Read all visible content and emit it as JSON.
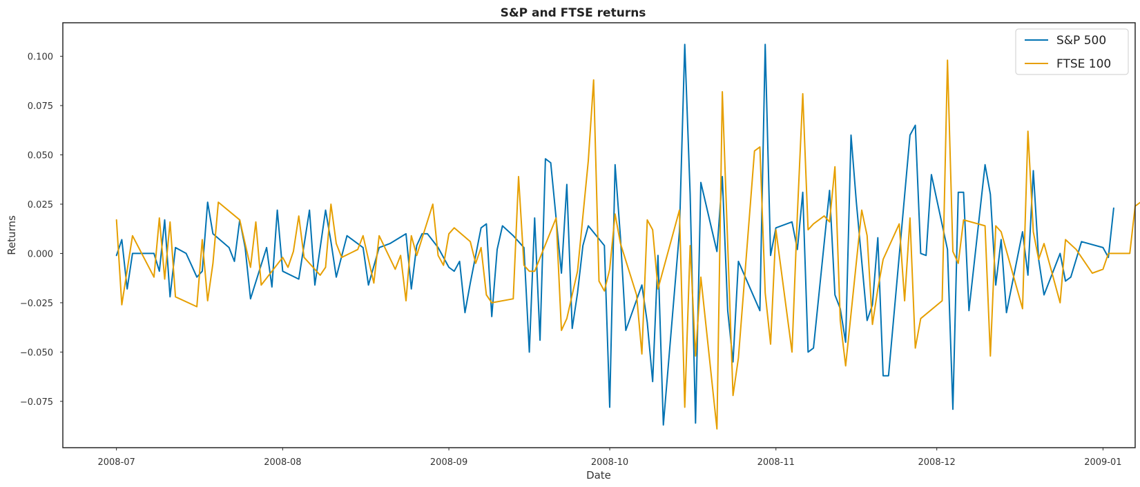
{
  "chart_data": {
    "type": "line",
    "title": "S&P and FTSE returns",
    "xlabel": "Date",
    "ylabel": "Returns",
    "xlim": [
      "2008-06-21",
      "2009-01-07"
    ],
    "ylim": [
      -0.0985,
      0.117
    ],
    "x_ticks": [
      {
        "date": "2008-07-01",
        "label": "2008-07"
      },
      {
        "date": "2008-08-01",
        "label": "2008-08"
      },
      {
        "date": "2008-09-01",
        "label": "2008-09"
      },
      {
        "date": "2008-10-01",
        "label": "2008-10"
      },
      {
        "date": "2008-11-01",
        "label": "2008-11"
      },
      {
        "date": "2008-12-01",
        "label": "2008-12"
      },
      {
        "date": "2009-01-01",
        "label": "2009-01"
      }
    ],
    "y_ticks": [
      -0.075,
      -0.05,
      -0.025,
      0.0,
      0.025,
      0.05,
      0.075,
      0.1
    ],
    "y_tick_labels": [
      "−0.075",
      "−0.050",
      "−0.025",
      "0.000",
      "0.025",
      "0.050",
      "0.075",
      "0.100"
    ],
    "grid": false,
    "legend": {
      "position": "top-right"
    },
    "series": [
      {
        "name": "S&P 500",
        "color": "#0072b2",
        "points": [
          [
            "2008-07-01",
            -0.001
          ],
          [
            "2008-07-02",
            0.007
          ],
          [
            "2008-07-03",
            -0.018
          ],
          [
            "2008-07-04",
            0.0
          ],
          [
            "2008-07-07",
            0.0
          ],
          [
            "2008-07-08",
            0.0
          ],
          [
            "2008-07-09",
            -0.009
          ],
          [
            "2008-07-10",
            0.017
          ],
          [
            "2008-07-11",
            -0.022
          ],
          [
            "2008-07-12",
            0.003
          ],
          [
            "2008-07-14",
            0.0
          ],
          [
            "2008-07-15",
            -0.006
          ],
          [
            "2008-07-16",
            -0.012
          ],
          [
            "2008-07-17",
            -0.009
          ],
          [
            "2008-07-18",
            0.026
          ],
          [
            "2008-07-19",
            0.01
          ],
          [
            "2008-07-22",
            0.003
          ],
          [
            "2008-07-23",
            -0.004
          ],
          [
            "2008-07-24",
            0.017
          ],
          [
            "2008-07-25",
            0.003
          ],
          [
            "2008-07-26",
            -0.023
          ],
          [
            "2008-07-29",
            0.003
          ],
          [
            "2008-07-30",
            -0.017
          ],
          [
            "2008-07-31",
            0.022
          ],
          [
            "2008-08-01",
            -0.009
          ],
          [
            "2008-08-04",
            -0.013
          ],
          [
            "2008-08-06",
            0.022
          ],
          [
            "2008-08-07",
            -0.016
          ],
          [
            "2008-08-09",
            0.022
          ],
          [
            "2008-08-10",
            0.006
          ],
          [
            "2008-08-11",
            -0.012
          ],
          [
            "2008-08-13",
            0.009
          ],
          [
            "2008-08-16",
            0.003
          ],
          [
            "2008-08-17",
            -0.016
          ],
          [
            "2008-08-19",
            0.003
          ],
          [
            "2008-08-21",
            0.005
          ],
          [
            "2008-08-24",
            0.01
          ],
          [
            "2008-08-25",
            -0.018
          ],
          [
            "2008-08-26",
            0.004
          ],
          [
            "2008-08-27",
            0.01
          ],
          [
            "2008-08-28",
            0.01
          ],
          [
            "2008-08-30",
            0.003
          ],
          [
            "2008-09-01",
            -0.007
          ],
          [
            "2008-09-02",
            -0.009
          ],
          [
            "2008-09-03",
            -0.004
          ],
          [
            "2008-09-04",
            -0.03
          ],
          [
            "2008-09-05",
            -0.015
          ],
          [
            "2008-09-07",
            0.013
          ],
          [
            "2008-09-08",
            0.015
          ],
          [
            "2008-09-09",
            -0.032
          ],
          [
            "2008-09-10",
            0.002
          ],
          [
            "2008-09-11",
            0.014
          ],
          [
            "2008-09-13",
            0.009
          ],
          [
            "2008-09-15",
            0.003
          ],
          [
            "2008-09-16",
            -0.05
          ],
          [
            "2008-09-17",
            0.018
          ],
          [
            "2008-09-18",
            -0.044
          ],
          [
            "2008-09-19",
            0.048
          ],
          [
            "2008-09-20",
            0.046
          ],
          [
            "2008-09-22",
            -0.01
          ],
          [
            "2008-09-23",
            0.035
          ],
          [
            "2008-09-24",
            -0.038
          ],
          [
            "2008-09-25",
            -0.02
          ],
          [
            "2008-09-26",
            0.004
          ],
          [
            "2008-09-27",
            0.014
          ],
          [
            "2008-09-30",
            0.004
          ],
          [
            "2008-10-01",
            -0.078
          ],
          [
            "2008-10-02",
            0.045
          ],
          [
            "2008-10-03",
            0.008
          ],
          [
            "2008-10-04",
            -0.039
          ],
          [
            "2008-10-07",
            -0.016
          ],
          [
            "2008-10-08",
            -0.035
          ],
          [
            "2008-10-09",
            -0.065
          ],
          [
            "2008-10-10",
            -0.001
          ],
          [
            "2008-10-11",
            -0.087
          ],
          [
            "2008-10-14",
            0.011
          ],
          [
            "2008-10-15",
            0.106
          ],
          [
            "2008-10-16",
            0.03
          ],
          [
            "2008-10-17",
            -0.086
          ],
          [
            "2008-10-18",
            0.036
          ],
          [
            "2008-10-21",
            0.001
          ],
          [
            "2008-10-22",
            0.039
          ],
          [
            "2008-10-23",
            -0.029
          ],
          [
            "2008-10-24",
            -0.055
          ],
          [
            "2008-10-25",
            -0.004
          ],
          [
            "2008-10-29",
            -0.029
          ],
          [
            "2008-10-30",
            0.106
          ],
          [
            "2008-10-31",
            -0.001
          ],
          [
            "2008-11-01",
            0.013
          ],
          [
            "2008-11-04",
            0.016
          ],
          [
            "2008-11-05",
            0.002
          ],
          [
            "2008-11-06",
            0.031
          ],
          [
            "2008-11-07",
            -0.05
          ],
          [
            "2008-11-08",
            -0.048
          ],
          [
            "2008-11-11",
            0.032
          ],
          [
            "2008-11-12",
            -0.021
          ],
          [
            "2008-11-13",
            -0.028
          ],
          [
            "2008-11-14",
            -0.045
          ],
          [
            "2008-11-15",
            0.06
          ],
          [
            "2008-11-16",
            0.026
          ],
          [
            "2008-11-18",
            -0.034
          ],
          [
            "2008-11-19",
            -0.026
          ],
          [
            "2008-11-20",
            0.008
          ],
          [
            "2008-11-21",
            -0.062
          ],
          [
            "2008-11-22",
            -0.062
          ],
          [
            "2008-11-26",
            0.06
          ],
          [
            "2008-11-27",
            0.065
          ],
          [
            "2008-11-28",
            0.0
          ],
          [
            "2008-11-29",
            -0.001
          ],
          [
            "2008-11-30",
            0.04
          ],
          [
            "2008-12-03",
            0.002
          ],
          [
            "2008-12-04",
            -0.079
          ],
          [
            "2008-12-05",
            0.031
          ],
          [
            "2008-12-06",
            0.031
          ],
          [
            "2008-12-07",
            -0.029
          ],
          [
            "2008-12-10",
            0.045
          ],
          [
            "2008-12-11",
            0.03
          ],
          [
            "2008-12-12",
            -0.016
          ],
          [
            "2008-12-13",
            0.007
          ],
          [
            "2008-12-14",
            -0.03
          ],
          [
            "2008-12-17",
            0.011
          ],
          [
            "2008-12-18",
            -0.011
          ],
          [
            "2008-12-19",
            0.042
          ],
          [
            "2008-12-20",
            -0.003
          ],
          [
            "2008-12-21",
            -0.021
          ],
          [
            "2008-12-24",
            0.0
          ],
          [
            "2008-12-25",
            -0.014
          ],
          [
            "2008-12-26",
            -0.012
          ],
          [
            "2008-12-28",
            0.006
          ],
          [
            "2009-01-01",
            0.003
          ],
          [
            "2009-01-02",
            -0.002
          ],
          [
            "2009-01-03",
            0.023
          ]
        ]
      },
      {
        "name": "FTSE 100",
        "color": "#e69f00",
        "points": [
          [
            "2008-07-01",
            0.017
          ],
          [
            "2008-07-02",
            -0.026
          ],
          [
            "2008-07-04",
            0.009
          ],
          [
            "2008-07-08",
            -0.012
          ],
          [
            "2008-07-09",
            0.018
          ],
          [
            "2008-07-10",
            -0.013
          ],
          [
            "2008-07-11",
            0.016
          ],
          [
            "2008-07-12",
            -0.022
          ],
          [
            "2008-07-16",
            -0.027
          ],
          [
            "2008-07-17",
            0.007
          ],
          [
            "2008-07-18",
            -0.024
          ],
          [
            "2008-07-19",
            -0.005
          ],
          [
            "2008-07-20",
            0.026
          ],
          [
            "2008-07-24",
            0.017
          ],
          [
            "2008-07-26",
            -0.007
          ],
          [
            "2008-07-27",
            0.016
          ],
          [
            "2008-07-28",
            -0.016
          ],
          [
            "2008-08-01",
            -0.002
          ],
          [
            "2008-08-02",
            -0.007
          ],
          [
            "2008-08-03",
            0.001
          ],
          [
            "2008-08-04",
            0.019
          ],
          [
            "2008-08-05",
            -0.002
          ],
          [
            "2008-08-08",
            -0.011
          ],
          [
            "2008-08-09",
            -0.007
          ],
          [
            "2008-08-10",
            0.025
          ],
          [
            "2008-08-11",
            0.005
          ],
          [
            "2008-08-12",
            -0.002
          ],
          [
            "2008-08-15",
            0.002
          ],
          [
            "2008-08-16",
            0.009
          ],
          [
            "2008-08-18",
            -0.015
          ],
          [
            "2008-08-19",
            0.009
          ],
          [
            "2008-08-22",
            -0.008
          ],
          [
            "2008-08-23",
            -0.001
          ],
          [
            "2008-08-24",
            -0.024
          ],
          [
            "2008-08-25",
            0.009
          ],
          [
            "2008-08-26",
            -0.001
          ],
          [
            "2008-08-29",
            0.025
          ],
          [
            "2008-08-30",
            -0.001
          ],
          [
            "2008-08-31",
            -0.006
          ],
          [
            "2008-09-01",
            0.01
          ],
          [
            "2008-09-02",
            0.013
          ],
          [
            "2008-09-05",
            0.006
          ],
          [
            "2008-09-06",
            -0.005
          ],
          [
            "2008-09-07",
            0.003
          ],
          [
            "2008-09-08",
            -0.021
          ],
          [
            "2008-09-09",
            -0.025
          ],
          [
            "2008-09-13",
            -0.023
          ],
          [
            "2008-09-14",
            0.039
          ],
          [
            "2008-09-15",
            -0.006
          ],
          [
            "2008-09-16",
            -0.009
          ],
          [
            "2008-09-17",
            -0.009
          ],
          [
            "2008-09-21",
            0.018
          ],
          [
            "2008-09-22",
            -0.039
          ],
          [
            "2008-09-23",
            -0.033
          ],
          [
            "2008-09-25",
            -0.009
          ],
          [
            "2008-09-27",
            0.047
          ],
          [
            "2008-09-28",
            0.088
          ],
          [
            "2008-09-29",
            -0.014
          ],
          [
            "2008-09-30",
            -0.019
          ],
          [
            "2008-10-01",
            -0.008
          ],
          [
            "2008-10-02",
            0.02
          ],
          [
            "2008-10-03",
            0.005
          ],
          [
            "2008-10-06",
            -0.021
          ],
          [
            "2008-10-07",
            -0.051
          ],
          [
            "2008-10-08",
            0.017
          ],
          [
            "2008-10-09",
            0.012
          ],
          [
            "2008-10-10",
            -0.018
          ],
          [
            "2008-10-14",
            0.022
          ],
          [
            "2008-10-15",
            -0.078
          ],
          [
            "2008-10-16",
            0.004
          ],
          [
            "2008-10-17",
            -0.052
          ],
          [
            "2008-10-18",
            -0.012
          ],
          [
            "2008-10-21",
            -0.089
          ],
          [
            "2008-10-22",
            0.082
          ],
          [
            "2008-10-24",
            -0.072
          ],
          [
            "2008-10-25",
            -0.053
          ],
          [
            "2008-10-28",
            0.052
          ],
          [
            "2008-10-29",
            0.054
          ],
          [
            "2008-10-30",
            -0.02
          ],
          [
            "2008-10-31",
            -0.046
          ],
          [
            "2008-11-01",
            0.012
          ],
          [
            "2008-11-04",
            -0.05
          ],
          [
            "2008-11-05",
            0.02
          ],
          [
            "2008-11-06",
            0.081
          ],
          [
            "2008-11-07",
            0.012
          ],
          [
            "2008-11-08",
            0.015
          ],
          [
            "2008-11-10",
            0.019
          ],
          [
            "2008-11-11",
            0.016
          ],
          [
            "2008-11-12",
            0.044
          ],
          [
            "2008-11-13",
            -0.034
          ],
          [
            "2008-11-14",
            -0.057
          ],
          [
            "2008-11-17",
            0.022
          ],
          [
            "2008-11-18",
            0.009
          ],
          [
            "2008-11-19",
            -0.036
          ],
          [
            "2008-11-20",
            -0.018
          ],
          [
            "2008-11-21",
            -0.003
          ],
          [
            "2008-11-24",
            0.015
          ],
          [
            "2008-11-25",
            -0.024
          ],
          [
            "2008-11-26",
            0.018
          ],
          [
            "2008-11-27",
            -0.048
          ],
          [
            "2008-11-28",
            -0.033
          ],
          [
            "2008-12-02",
            -0.024
          ],
          [
            "2008-12-03",
            0.098
          ],
          [
            "2008-12-04",
            0.001
          ],
          [
            "2008-12-05",
            -0.005
          ],
          [
            "2008-12-06",
            0.017
          ],
          [
            "2008-12-10",
            0.014
          ],
          [
            "2008-12-11",
            -0.052
          ],
          [
            "2008-12-12",
            0.014
          ],
          [
            "2008-12-13",
            0.011
          ],
          [
            "2008-12-17",
            -0.028
          ],
          [
            "2008-12-18",
            0.062
          ],
          [
            "2008-12-19",
            0.011
          ],
          [
            "2008-12-20",
            -0.003
          ],
          [
            "2008-12-21",
            0.005
          ],
          [
            "2008-12-24",
            -0.025
          ],
          [
            "2008-12-25",
            0.007
          ],
          [
            "2008-12-27",
            0.002
          ],
          [
            "2008-12-30",
            -0.01
          ],
          [
            "2009-01-01",
            -0.008
          ],
          [
            "2009-01-02",
            0.0
          ],
          [
            "2009-01-06",
            0.0
          ],
          [
            "2009-01-07",
            0.024
          ],
          [
            "2009-01-08",
            0.026
          ]
        ]
      }
    ]
  }
}
